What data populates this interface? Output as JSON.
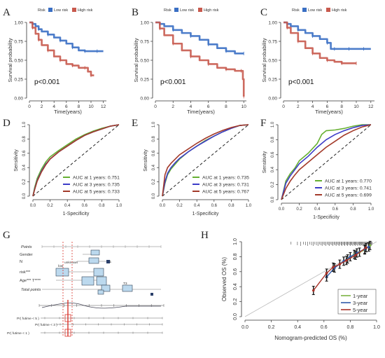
{
  "colors": {
    "low_risk": "#3a6fc4",
    "high_risk": "#c85a4e",
    "roc_1": "#66b032",
    "roc_3": "#3c3cc8",
    "roc_5": "#a33a2a",
    "cal_1": "#7cb342",
    "cal_3": "#2f5aa8",
    "cal_5": "#a83228",
    "nomo_box": "#bcd9ee",
    "nomo_red": "#d9342b"
  },
  "chart_data": [
    {
      "panel": "A",
      "type": "line",
      "legend_title": "Risk",
      "legend": [
        "Low risk",
        "High risk"
      ],
      "xlabel": "Time(years)",
      "ylabel": "Survival probability",
      "xlim": [
        0,
        12.5
      ],
      "ylim": [
        0,
        1.0
      ],
      "xticks": [
        "0",
        "2",
        "4",
        "6",
        "8",
        "10",
        "12"
      ],
      "yticks": [
        "0.00",
        "0.25",
        "0.50",
        "0.75",
        "1.00"
      ],
      "pvalue": "p<0.001",
      "series": [
        {
          "name": "Low risk",
          "x": [
            0,
            0.5,
            1,
            1.5,
            2,
            3,
            4,
            5,
            6,
            7,
            8,
            9,
            10,
            11,
            12
          ],
          "y": [
            1,
            0.98,
            0.95,
            0.91,
            0.88,
            0.84,
            0.8,
            0.76,
            0.72,
            0.67,
            0.63,
            0.62,
            0.62,
            0.62,
            0.62
          ]
        },
        {
          "name": "High risk",
          "x": [
            0,
            0.5,
            1,
            1.5,
            2,
            3,
            4,
            5,
            6,
            7,
            8,
            9,
            9.5,
            10,
            10.5
          ],
          "y": [
            1,
            0.93,
            0.85,
            0.77,
            0.7,
            0.63,
            0.55,
            0.5,
            0.45,
            0.43,
            0.4,
            0.4,
            0.35,
            0.3,
            0.3
          ]
        }
      ]
    },
    {
      "panel": "B",
      "type": "line",
      "legend_title": "Risk",
      "legend": [
        "Low risk",
        "High risk"
      ],
      "xlabel": "Time(years)",
      "ylabel": "Survival probability",
      "xlim": [
        0,
        10.3
      ],
      "ylim": [
        0,
        1.0
      ],
      "xticks": [
        "0",
        "2",
        "4",
        "6",
        "8",
        "10"
      ],
      "yticks": [
        "0.00",
        "0.25",
        "0.50",
        "0.75",
        "1.00"
      ],
      "pvalue": "p<0.001",
      "series": [
        {
          "name": "Low risk",
          "x": [
            0,
            0.5,
            1,
            2,
            3,
            4,
            5,
            6,
            7,
            8,
            9,
            10
          ],
          "y": [
            1,
            0.98,
            0.95,
            0.9,
            0.86,
            0.82,
            0.77,
            0.71,
            0.66,
            0.62,
            0.59,
            0.59
          ]
        },
        {
          "name": "High risk",
          "x": [
            0,
            0.5,
            1,
            2,
            3,
            4,
            5,
            6,
            7,
            8,
            9,
            9.7,
            9.9,
            10
          ],
          "y": [
            1,
            0.92,
            0.83,
            0.72,
            0.63,
            0.55,
            0.5,
            0.45,
            0.4,
            0.38,
            0.36,
            0.36,
            0.25,
            0.02
          ]
        }
      ]
    },
    {
      "panel": "C",
      "type": "line",
      "legend_title": "Risk",
      "legend": [
        "Low risk",
        "High risk"
      ],
      "xlabel": "Time(years)",
      "ylabel": "Survival probability",
      "xlim": [
        0,
        12.5
      ],
      "ylim": [
        0,
        1.0
      ],
      "xticks": [
        "0",
        "2",
        "4",
        "6",
        "8",
        "10",
        "12"
      ],
      "yticks": [
        "0.00",
        "0.25",
        "0.50",
        "0.75",
        "1.00"
      ],
      "pvalue": "p<0.001",
      "series": [
        {
          "name": "Low risk",
          "x": [
            0,
            0.5,
            1,
            2,
            3,
            4,
            5,
            6,
            6.5,
            7,
            8,
            9,
            10,
            11,
            12
          ],
          "y": [
            1,
            0.98,
            0.95,
            0.9,
            0.86,
            0.82,
            0.78,
            0.73,
            0.65,
            0.65,
            0.65,
            0.65,
            0.65,
            0.65,
            0.65
          ]
        },
        {
          "name": "High risk",
          "x": [
            0,
            0.5,
            1,
            2,
            3,
            4,
            5,
            6,
            7,
            8,
            9,
            10
          ],
          "y": [
            1,
            0.93,
            0.86,
            0.75,
            0.66,
            0.59,
            0.53,
            0.5,
            0.48,
            0.46,
            0.46,
            0.46
          ]
        }
      ]
    },
    {
      "panel": "D",
      "type": "line",
      "xlabel": "1-Specificity",
      "ylabel": "Sensitivity",
      "xlim": [
        0,
        1
      ],
      "ylim": [
        0,
        1
      ],
      "xticks": [
        "0.0",
        "0.2",
        "0.4",
        "0.6",
        "0.8",
        "1.0"
      ],
      "yticks": [
        "0.0",
        "0.2",
        "0.4",
        "0.6",
        "0.8",
        "1.0"
      ],
      "series": [
        {
          "name": "AUC at 1 years: 0.751",
          "x": [
            0,
            0.02,
            0.05,
            0.1,
            0.15,
            0.2,
            0.3,
            0.4,
            0.5,
            0.6,
            0.7,
            0.8,
            0.9,
            1
          ],
          "y": [
            0,
            0.12,
            0.25,
            0.38,
            0.48,
            0.55,
            0.64,
            0.72,
            0.8,
            0.86,
            0.91,
            0.95,
            0.98,
            1
          ]
        },
        {
          "name": "AUC at 3 years: 0.735",
          "x": [
            0,
            0.02,
            0.05,
            0.1,
            0.15,
            0.2,
            0.3,
            0.4,
            0.5,
            0.6,
            0.7,
            0.8,
            0.9,
            1
          ],
          "y": [
            0,
            0.1,
            0.22,
            0.35,
            0.45,
            0.52,
            0.62,
            0.7,
            0.78,
            0.85,
            0.9,
            0.94,
            0.98,
            1
          ]
        },
        {
          "name": "AUC at 5 years: 0.733",
          "x": [
            0,
            0.02,
            0.05,
            0.1,
            0.15,
            0.2,
            0.3,
            0.4,
            0.5,
            0.6,
            0.7,
            0.8,
            0.9,
            1
          ],
          "y": [
            0,
            0.09,
            0.21,
            0.34,
            0.44,
            0.52,
            0.62,
            0.7,
            0.78,
            0.85,
            0.9,
            0.94,
            0.98,
            1
          ]
        }
      ]
    },
    {
      "panel": "E",
      "type": "line",
      "xlabel": "1-Specificity",
      "ylabel": "Sensitivity",
      "xlim": [
        0,
        1
      ],
      "ylim": [
        0,
        1
      ],
      "xticks": [
        "0.0",
        "0.2",
        "0.4",
        "0.6",
        "0.8",
        "1.0"
      ],
      "yticks": [
        "0.0",
        "0.2",
        "0.4",
        "0.6",
        "0.8",
        "1.0"
      ],
      "series": [
        {
          "name": "AUC at 1 years: 0.735",
          "x": [
            0,
            0.03,
            0.06,
            0.1,
            0.15,
            0.2,
            0.3,
            0.4,
            0.5,
            0.6,
            0.7,
            0.8,
            0.9,
            1
          ],
          "y": [
            0,
            0.18,
            0.3,
            0.38,
            0.45,
            0.52,
            0.62,
            0.7,
            0.78,
            0.84,
            0.9,
            0.95,
            0.99,
            1
          ]
        },
        {
          "name": "AUC at 3 years: 0.731",
          "x": [
            0,
            0.03,
            0.06,
            0.1,
            0.15,
            0.2,
            0.3,
            0.4,
            0.5,
            0.6,
            0.7,
            0.8,
            0.9,
            1
          ],
          "y": [
            0,
            0.2,
            0.32,
            0.4,
            0.47,
            0.53,
            0.62,
            0.7,
            0.77,
            0.84,
            0.9,
            0.95,
            0.99,
            1
          ]
        },
        {
          "name": "AUC at 5 years: 0.767",
          "x": [
            0,
            0.03,
            0.06,
            0.1,
            0.15,
            0.2,
            0.3,
            0.4,
            0.5,
            0.6,
            0.7,
            0.8,
            0.9,
            1
          ],
          "y": [
            0,
            0.3,
            0.4,
            0.46,
            0.52,
            0.58,
            0.66,
            0.74,
            0.81,
            0.87,
            0.92,
            0.96,
            0.99,
            1
          ]
        }
      ]
    },
    {
      "panel": "F",
      "type": "line",
      "xlabel": "1-Specificity",
      "ylabel": "Sensitivity",
      "xlim": [
        0,
        1
      ],
      "ylim": [
        0,
        1
      ],
      "xticks": [
        "0.0",
        "0.2",
        "0.4",
        "0.6",
        "0.8",
        "1.0"
      ],
      "yticks": [
        "0.0",
        "0.2",
        "0.4",
        "0.6",
        "0.8",
        "1.0"
      ],
      "series": [
        {
          "name": "AUC at 1 years: 0.770",
          "x": [
            0,
            0.05,
            0.1,
            0.15,
            0.2,
            0.3,
            0.4,
            0.45,
            0.5,
            0.6,
            0.7,
            0.8,
            0.9,
            1
          ],
          "y": [
            0,
            0.25,
            0.35,
            0.42,
            0.52,
            0.62,
            0.75,
            0.87,
            0.92,
            0.93,
            0.95,
            0.98,
            1,
            1
          ]
        },
        {
          "name": "AUC at 3 years: 0.741",
          "x": [
            0,
            0.05,
            0.1,
            0.15,
            0.2,
            0.3,
            0.4,
            0.5,
            0.6,
            0.7,
            0.8,
            0.9,
            1
          ],
          "y": [
            0,
            0.22,
            0.32,
            0.4,
            0.48,
            0.58,
            0.7,
            0.8,
            0.87,
            0.92,
            0.96,
            0.99,
            1
          ]
        },
        {
          "name": "AUC at 5 years: 0.699",
          "x": [
            0,
            0.05,
            0.1,
            0.15,
            0.2,
            0.3,
            0.4,
            0.5,
            0.6,
            0.7,
            0.8,
            0.9,
            1
          ],
          "y": [
            0,
            0.15,
            0.25,
            0.33,
            0.4,
            0.5,
            0.6,
            0.7,
            0.78,
            0.86,
            0.92,
            0.97,
            1
          ]
        }
      ]
    },
    {
      "panel": "G",
      "type": "table",
      "rows": [
        "Points",
        "Gender",
        "N",
        "risk***",
        "Age*** T****",
        "Total points",
        "Pr( futime < 5 )",
        "Pr( futime < 3 )",
        "Pr( futime < 1 )"
      ],
      "labels": [
        "unknown",
        "low",
        "N1",
        "T3"
      ]
    },
    {
      "panel": "H",
      "type": "line",
      "xlabel": "Nomogram-predicted OS (%)",
      "ylabel": "Observed OS (%)",
      "xlim": [
        0,
        1
      ],
      "ylim": [
        0,
        1
      ],
      "xticks": [
        "0.0",
        "0.2",
        "0.4",
        "0.6",
        "0.8",
        "1.0"
      ],
      "yticks": [
        "0.0",
        "0.2",
        "0.4",
        "0.6",
        "0.8",
        "1.0"
      ],
      "series": [
        {
          "name": "1-year",
          "x": [
            0.78,
            0.83,
            0.87,
            0.91,
            0.95
          ],
          "y": [
            0.77,
            0.83,
            0.86,
            0.89,
            0.95
          ]
        },
        {
          "name": "3-year",
          "x": [
            0.62,
            0.68,
            0.75,
            0.8,
            0.85,
            0.91,
            0.94
          ],
          "y": [
            0.53,
            0.65,
            0.74,
            0.8,
            0.85,
            0.9,
            0.93
          ]
        },
        {
          "name": "5-year",
          "x": [
            0.52,
            0.62,
            0.67,
            0.72,
            0.77,
            0.84,
            0.92
          ],
          "y": [
            0.35,
            0.58,
            0.66,
            0.7,
            0.75,
            0.82,
            0.92
          ]
        }
      ]
    }
  ]
}
